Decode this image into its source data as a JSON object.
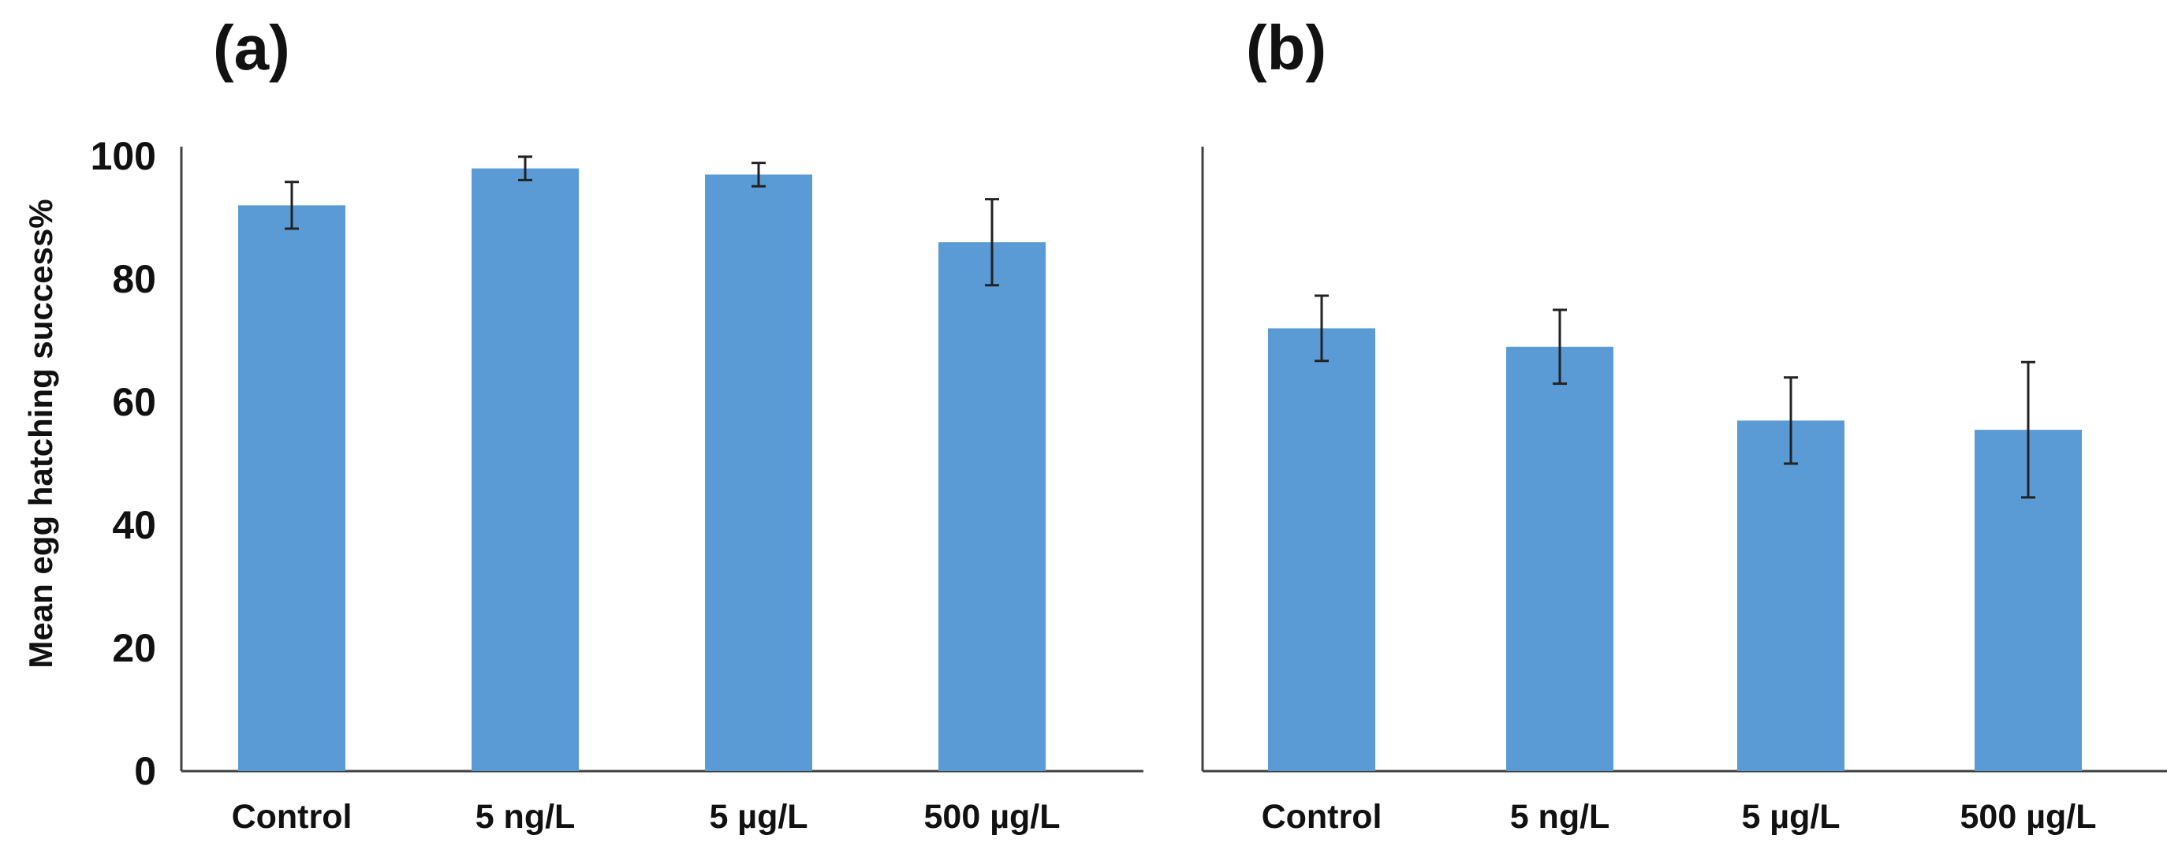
{
  "colors": {
    "bar": "#5B9BD5",
    "axis": "#404040",
    "text": "#111111"
  },
  "y_axis_title": "Mean egg hatching  success%",
  "chart_data": [
    {
      "type": "bar",
      "panel_label": "(a)",
      "categories": [
        "Control",
        "5 ng/L",
        "5 µg/L",
        "500 µg/L"
      ],
      "values": [
        92,
        98,
        97,
        86
      ],
      "error": [
        3.8,
        1.9,
        1.9,
        7
      ],
      "ylim": [
        0,
        100
      ],
      "yticks": [
        0,
        20,
        40,
        60,
        80,
        100
      ],
      "show_y_ticks": true
    },
    {
      "type": "bar",
      "panel_label": "(b)",
      "categories": [
        "Control",
        "5 ng/L",
        "5 µg/L",
        "500 µg/L"
      ],
      "values": [
        72,
        69,
        57,
        55.5
      ],
      "error": [
        5.3,
        6,
        7,
        11
      ],
      "ylim": [
        0,
        100
      ],
      "yticks": [
        0,
        20,
        40,
        60,
        80,
        100
      ],
      "show_y_ticks": false
    }
  ]
}
